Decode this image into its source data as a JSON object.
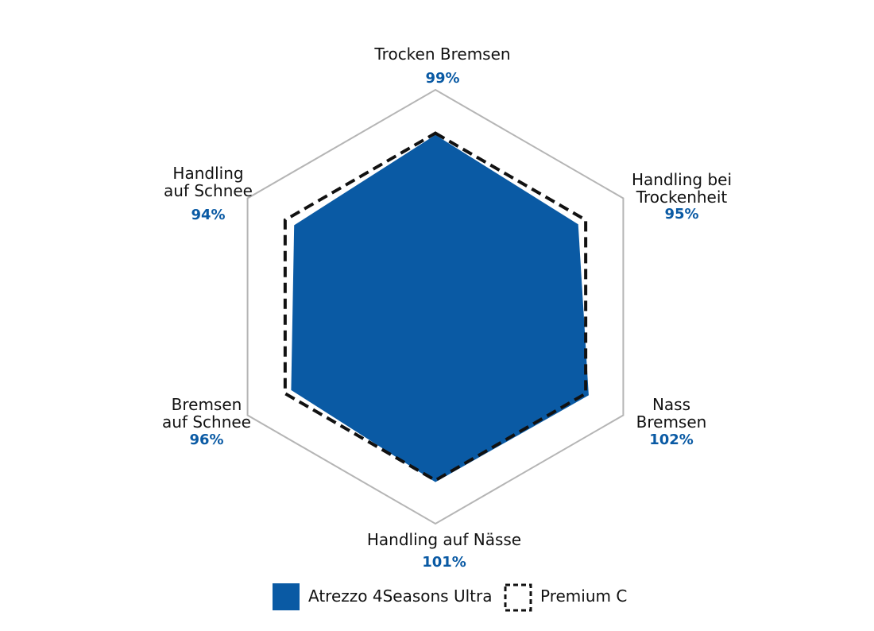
{
  "chart_data": {
    "type": "radar",
    "axes": [
      {
        "name": [
          "Trocken Bremsen"
        ],
        "value_label": "99%"
      },
      {
        "name": [
          "Handling bei",
          "Trockenheit"
        ],
        "value_label": "95%"
      },
      {
        "name": [
          "Nass",
          "Bremsen"
        ],
        "value_label": "102%"
      },
      {
        "name": [
          "Handling auf Nässe"
        ],
        "value_label": "101%"
      },
      {
        "name": [
          "Bremsen",
          "auf Schnee"
        ],
        "value_label": "96%"
      },
      {
        "name": [
          "Handling",
          "auf Schnee"
        ],
        "value_label": "94%"
      }
    ],
    "series": [
      {
        "name": "Atrezzo 4Seasons Ultra",
        "values": [
          99,
          95,
          102,
          101,
          96,
          94
        ],
        "color": "#0a5aa4",
        "style": "filled"
      },
      {
        "name": "Premium C",
        "values": [
          100,
          100,
          100,
          100,
          100,
          100
        ],
        "color": "#111111",
        "style": "dashed"
      }
    ],
    "legend_position": "bottom"
  }
}
